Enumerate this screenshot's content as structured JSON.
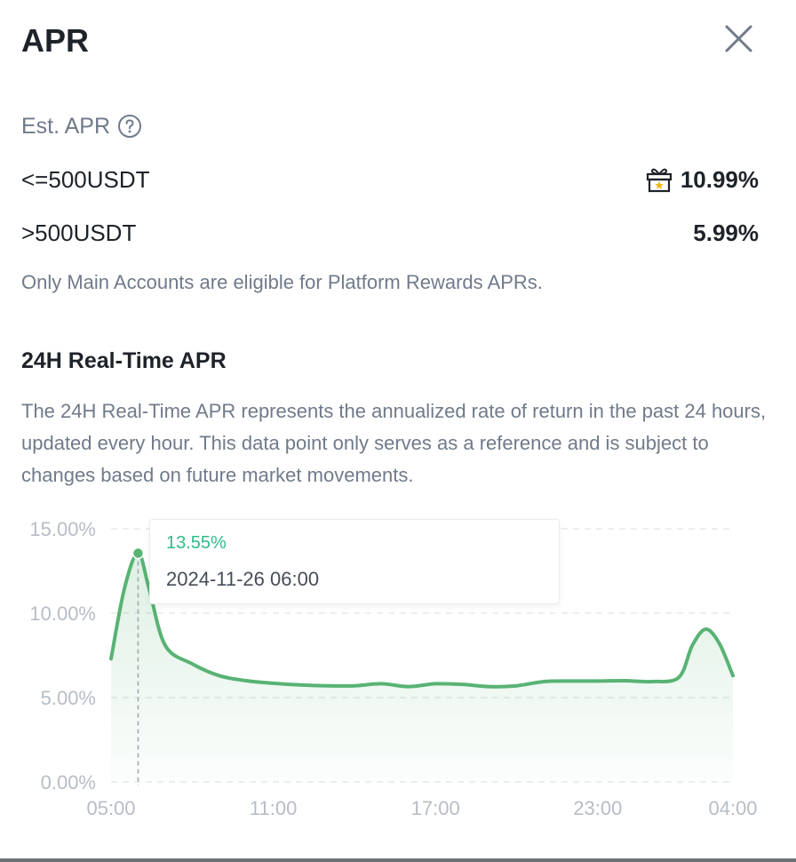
{
  "header": {
    "title": "APR"
  },
  "est_apr": {
    "label": "Est. APR",
    "help_icon": "question-circle-icon",
    "tiers": [
      {
        "label": "<=500USDT",
        "value": "10.99%",
        "icon": "gift-icon"
      },
      {
        "label": ">500USDT",
        "value": "5.99%"
      }
    ],
    "note": "Only Main Accounts are eligible for Platform Rewards APRs."
  },
  "realtime": {
    "title": "24H Real-Time APR",
    "description": "The 24H Real-Time APR represents the annualized rate of return in the past 24 hours, updated every hour. This data point only serves as a reference and is subject to changes based on future market movements."
  },
  "tooltip": {
    "value": "13.55%",
    "time": "2024-11-26 06:00"
  },
  "colors": {
    "accent_green": "#58b374",
    "grid": "#e6e8ea",
    "axis_text": "#b7bdc6"
  },
  "chart_data": {
    "type": "area",
    "y_ticks": [
      "15.00%",
      "10.00%",
      "5.00%",
      "0.00%"
    ],
    "y_tick_values": [
      15,
      10,
      5,
      0
    ],
    "x_ticks": [
      "05:00",
      "11:00",
      "17:00",
      "23:00",
      "04:00"
    ],
    "x_tick_hours": [
      0,
      6,
      12,
      18,
      23
    ],
    "ylim": [
      0,
      15
    ],
    "xlim": [
      0,
      23
    ],
    "grid": true,
    "highlight": {
      "x": 1,
      "y": 13.55
    },
    "series": [
      {
        "values": [
          [
            0,
            7.3
          ],
          [
            0.5,
            11.5
          ],
          [
            1,
            13.55
          ],
          [
            1.4,
            11.5
          ],
          [
            2,
            8.1
          ],
          [
            3,
            7.0
          ],
          [
            4,
            6.3
          ],
          [
            5,
            6.0
          ],
          [
            6,
            5.85
          ],
          [
            7,
            5.75
          ],
          [
            8,
            5.7
          ],
          [
            9,
            5.7
          ],
          [
            10,
            5.82
          ],
          [
            11,
            5.65
          ],
          [
            12,
            5.82
          ],
          [
            13,
            5.78
          ],
          [
            14,
            5.65
          ],
          [
            15,
            5.7
          ],
          [
            16,
            5.95
          ],
          [
            17,
            5.98
          ],
          [
            18,
            5.98
          ],
          [
            19,
            6.0
          ],
          [
            20,
            5.95
          ],
          [
            21,
            6.2
          ],
          [
            21.5,
            8.1
          ],
          [
            22,
            9.05
          ],
          [
            22.5,
            8.2
          ],
          [
            23,
            6.3
          ]
        ]
      }
    ]
  }
}
